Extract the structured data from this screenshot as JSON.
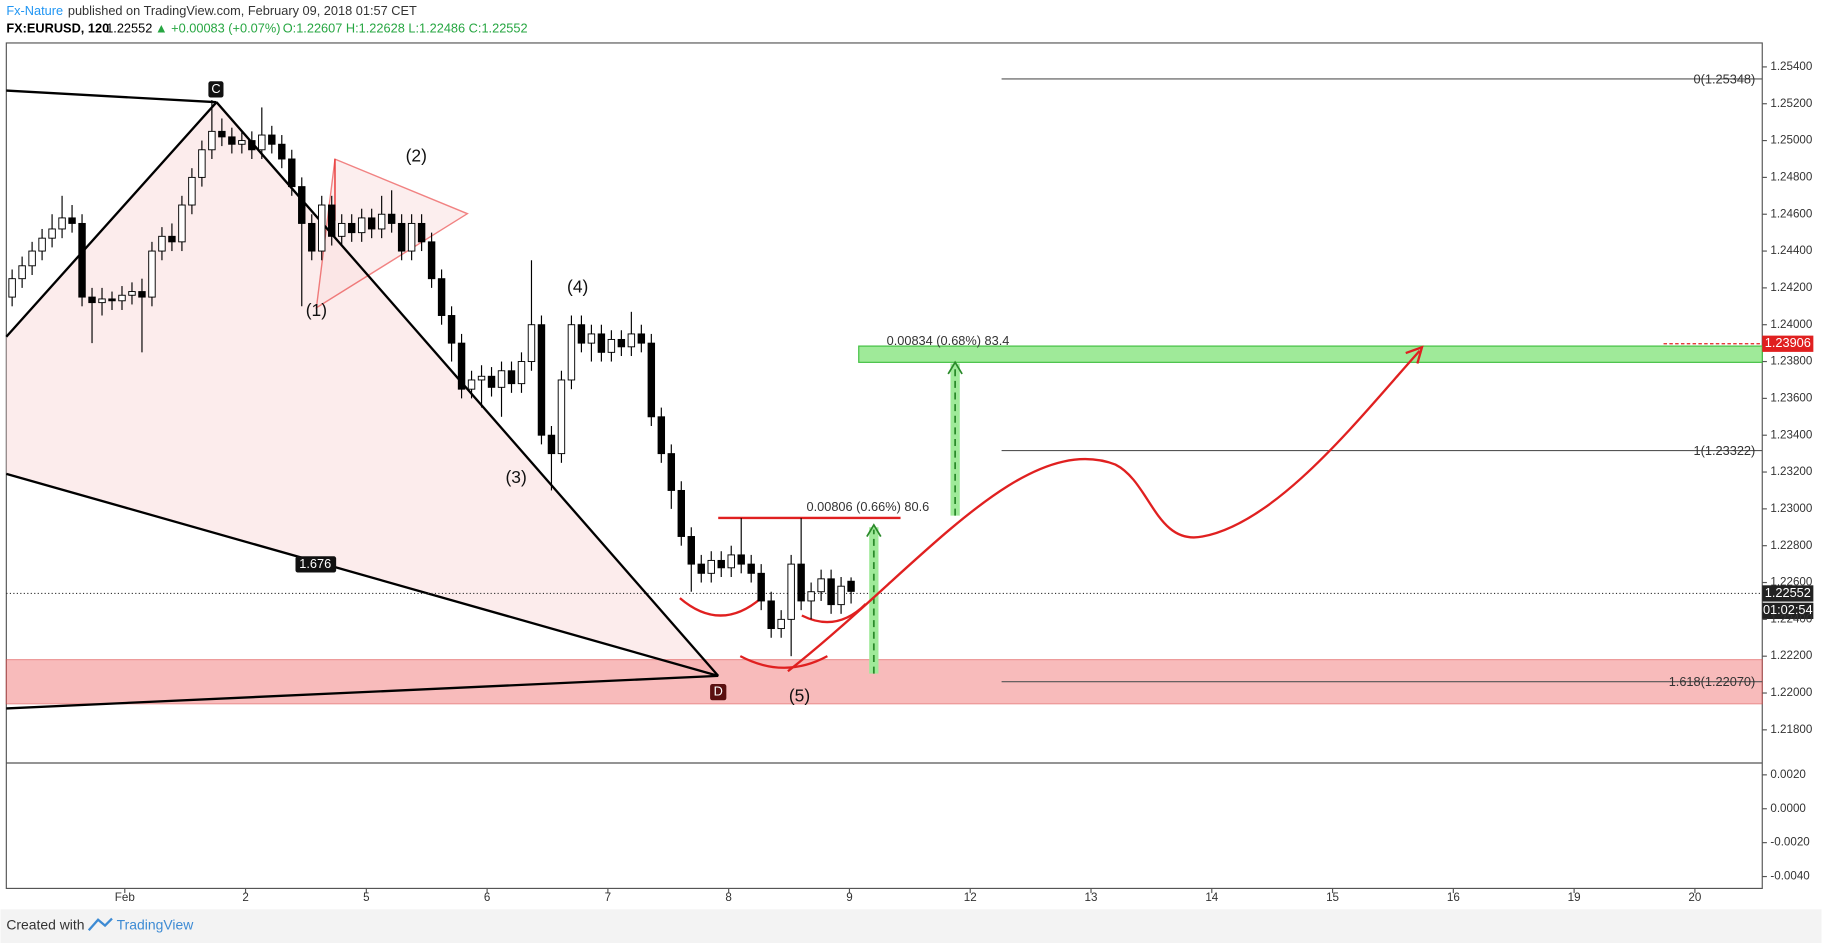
{
  "header": {
    "author": "Fx-Nature",
    "published": "published on TradingView.com, February 09, 2018 01:57 CET",
    "symbol": "FX:EURUSD, 120",
    "price": "1.22552",
    "change": "▲ +0.00083 (+0.07%)",
    "ohlc": "O:1.22607 H:1.22628 L:1.22486 C:1.22552"
  },
  "annotations": {
    "c": "C",
    "d": "D",
    "w1": "(1)",
    "w2": "(2)",
    "w3": "(3)",
    "w4": "(4)",
    "w5": "(5)",
    "ratio": "1.676",
    "fib0": "0(1.25348)",
    "fib1": "1(1.23322)",
    "fib1618": "1.618(1.22070)",
    "range_up": "0.00834 (0.68%) 83.4",
    "range_low": "0.00806 (0.66%) 80.6",
    "target_tag": "1.23906",
    "price_tag": "1.22552",
    "timer_tag": "01:02:54"
  },
  "footer": {
    "created": "Created with",
    "brand": "TradingView"
  },
  "chart_data": {
    "type": "candlestick",
    "open": [
      1.2415,
      1.2425,
      1.2432,
      1.244,
      1.2447,
      1.2452,
      1.2458,
      1.2455,
      1.2415,
      1.2412,
      1.2414,
      1.2413,
      1.2416,
      1.2418,
      1.2415,
      1.244,
      1.2448,
      1.2445,
      1.2465,
      1.248,
      1.2495,
      1.2505,
      1.2502,
      1.2498,
      1.25,
      1.2495,
      1.2503,
      1.2498,
      1.249,
      1.2475,
      1.2455,
      1.244,
      1.2465,
      1.2448,
      1.2455,
      1.245,
      1.2458,
      1.2452,
      1.246,
      1.2455,
      1.244,
      1.2455,
      1.2445,
      1.2425,
      1.2405,
      1.239,
      1.2365,
      1.237,
      1.2372,
      1.2366,
      1.2375,
      1.2368,
      1.238,
      1.24,
      1.234,
      1.233,
      1.237,
      1.24,
      1.239,
      1.2395,
      1.2385,
      1.2392,
      1.2388,
      1.2395,
      1.239,
      1.235,
      1.233,
      1.231,
      1.2285,
      1.227,
      1.2265,
      1.2272,
      1.2268,
      1.2275,
      1.227,
      1.2265,
      1.225,
      1.2235,
      1.224,
      1.227,
      1.225,
      1.2255,
      1.2262,
      1.2248,
      1.22607
    ],
    "high": [
      1.243,
      1.2437,
      1.2445,
      1.2452,
      1.246,
      1.247,
      1.2465,
      1.246,
      1.242,
      1.242,
      1.2418,
      1.2421,
      1.2423,
      1.2425,
      1.2445,
      1.2453,
      1.2455,
      1.247,
      1.2485,
      1.25,
      1.2522,
      1.2512,
      1.2507,
      1.2505,
      1.2505,
      1.2518,
      1.2508,
      1.2503,
      1.2495,
      1.248,
      1.246,
      1.247,
      1.247,
      1.246,
      1.246,
      1.2463,
      1.2463,
      1.247,
      1.2473,
      1.246,
      1.246,
      1.246,
      1.245,
      1.243,
      1.241,
      1.2395,
      1.2375,
      1.2378,
      1.2377,
      1.238,
      1.238,
      1.2385,
      1.2435,
      1.2405,
      1.2345,
      1.2375,
      1.2405,
      1.2405,
      1.24,
      1.24,
      1.2397,
      1.2397,
      1.2407,
      1.24,
      1.2395,
      1.2355,
      1.2335,
      1.2315,
      1.229,
      1.2275,
      1.2277,
      1.2277,
      1.228,
      1.2295,
      1.2275,
      1.227,
      1.2255,
      1.2245,
      1.2275,
      1.2295,
      1.226,
      1.2267,
      1.2267,
      1.2263,
      1.22628
    ],
    "low": [
      1.241,
      1.242,
      1.2427,
      1.2435,
      1.2442,
      1.2447,
      1.245,
      1.241,
      1.239,
      1.2405,
      1.2408,
      1.2408,
      1.2411,
      1.2385,
      1.241,
      1.2435,
      1.244,
      1.244,
      1.246,
      1.2475,
      1.249,
      1.2497,
      1.2493,
      1.2493,
      1.249,
      1.249,
      1.2493,
      1.2485,
      1.247,
      1.241,
      1.2435,
      1.2435,
      1.2443,
      1.2443,
      1.2445,
      1.2445,
      1.2447,
      1.2447,
      1.245,
      1.2435,
      1.2435,
      1.244,
      1.242,
      1.24,
      1.238,
      1.236,
      1.236,
      1.2355,
      1.2361,
      1.235,
      1.2363,
      1.2363,
      1.2375,
      1.2335,
      1.231,
      1.2325,
      1.2365,
      1.2385,
      1.238,
      1.238,
      1.238,
      1.2383,
      1.2383,
      1.2385,
      1.2345,
      1.2325,
      1.23,
      1.228,
      1.2255,
      1.226,
      1.226,
      1.2263,
      1.2263,
      1.2265,
      1.226,
      1.2245,
      1.223,
      1.223,
      1.222,
      1.2245,
      1.224,
      1.225,
      1.2243,
      1.2243,
      1.22486
    ],
    "close": [
      1.2425,
      1.2432,
      1.244,
      1.2447,
      1.2452,
      1.2458,
      1.2455,
      1.2415,
      1.2412,
      1.2414,
      1.2413,
      1.2416,
      1.2418,
      1.2415,
      1.244,
      1.2448,
      1.2445,
      1.2465,
      1.248,
      1.2495,
      1.2505,
      1.2502,
      1.2498,
      1.25,
      1.2495,
      1.2503,
      1.2498,
      1.249,
      1.2475,
      1.2455,
      1.244,
      1.2465,
      1.2448,
      1.2455,
      1.245,
      1.2458,
      1.2452,
      1.246,
      1.2455,
      1.244,
      1.2455,
      1.2445,
      1.2425,
      1.2405,
      1.239,
      1.2365,
      1.237,
      1.2372,
      1.2366,
      1.2375,
      1.2368,
      1.238,
      1.24,
      1.234,
      1.233,
      1.237,
      1.24,
      1.239,
      1.2395,
      1.2385,
      1.2392,
      1.2388,
      1.2395,
      1.239,
      1.235,
      1.233,
      1.231,
      1.2285,
      1.227,
      1.2265,
      1.2272,
      1.2268,
      1.2275,
      1.227,
      1.2265,
      1.225,
      1.2235,
      1.224,
      1.227,
      1.225,
      1.2255,
      1.2262,
      1.2248,
      1.2258,
      1.22552
    ],
    "up_color": "#ffffff",
    "down_color": "#000000",
    "xticks": [
      "Feb",
      "2",
      "5",
      "6",
      "7",
      "8",
      "9",
      "12",
      "13",
      "14",
      "15",
      "16",
      "19",
      "20"
    ],
    "ylim": [
      1.2162,
      1.2553
    ],
    "yticks": [
      {
        "value": 1.254,
        "label": "1.25400"
      },
      {
        "value": 1.252,
        "label": "1.25200"
      },
      {
        "value": 1.25,
        "label": "1.25000"
      },
      {
        "value": 1.248,
        "label": "1.24800"
      },
      {
        "value": 1.246,
        "label": "1.24600"
      },
      {
        "value": 1.244,
        "label": "1.24400"
      },
      {
        "value": 1.242,
        "label": "1.24200"
      },
      {
        "value": 1.24,
        "label": "1.24000"
      },
      {
        "value": 1.238,
        "label": "1.23800"
      },
      {
        "value": 1.236,
        "label": "1.23600"
      },
      {
        "value": 1.234,
        "label": "1.23400"
      },
      {
        "value": 1.232,
        "label": "1.23200"
      },
      {
        "value": 1.23,
        "label": "1.23000"
      },
      {
        "value": 1.228,
        "label": "1.22800"
      },
      {
        "value": 1.226,
        "label": "1.22600"
      },
      {
        "value": 1.224,
        "label": "1.22400"
      },
      {
        "value": 1.222,
        "label": "1.22200"
      },
      {
        "value": 1.22,
        "label": "1.22000"
      },
      {
        "value": 1.218,
        "label": "1.21800"
      }
    ],
    "y2lim": [
      0.0027,
      -0.0047
    ],
    "y2ticks": [
      {
        "value": 0.002,
        "label": "0.0020"
      },
      {
        "value": 0,
        "label": "0.0000"
      },
      {
        "value": -0.002,
        "label": "-0.0020"
      },
      {
        "value": -0.004,
        "label": "-0.0040"
      }
    ]
  }
}
